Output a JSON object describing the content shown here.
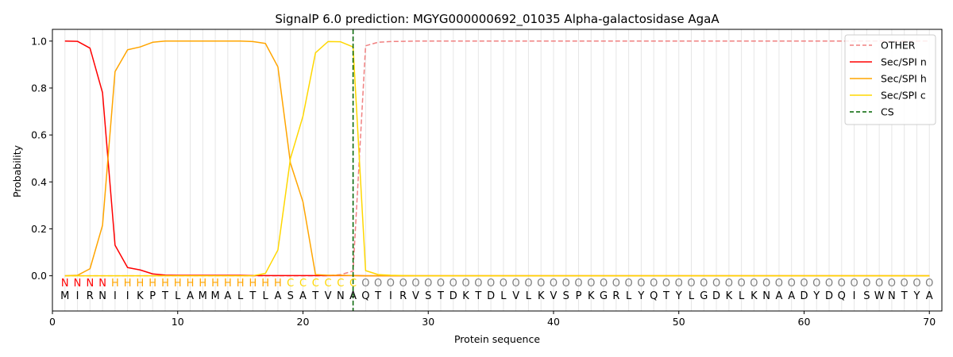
{
  "chart_data": {
    "type": "line",
    "title": "SignalP 6.0 prediction: MGYG000000692_01035 Alpha-galactosidase AgaA",
    "xlabel": "Protein sequence",
    "ylabel": "Probability",
    "xlim": [
      0,
      71
    ],
    "ylim": [
      -0.15,
      1.05
    ],
    "xticks": [
      0,
      10,
      20,
      30,
      40,
      50,
      60,
      70
    ],
    "yticks": [
      0.0,
      0.2,
      0.4,
      0.6,
      0.8,
      1.0
    ],
    "ytick_labels": [
      "0.0",
      "0.2",
      "0.4",
      "0.6",
      "0.8",
      "1.0"
    ],
    "grid": "vertical lines at each residue",
    "legend_position": "top-right",
    "sequence": [
      "M",
      "I",
      "R",
      "N",
      "I",
      "I",
      "K",
      "P",
      "T",
      "L",
      "A",
      "M",
      "M",
      "A",
      "L",
      "T",
      "L",
      "A",
      "S",
      "A",
      "T",
      "V",
      "N",
      "A",
      "Q",
      "T",
      "I",
      "R",
      "V",
      "S",
      "T",
      "D",
      "K",
      "T",
      "D",
      "L",
      "V",
      "L",
      "K",
      "V",
      "S",
      "P",
      "K",
      "G",
      "R",
      "L",
      "Y",
      "Q",
      "T",
      "Y",
      "L",
      "G",
      "D",
      "K",
      "L",
      "K",
      "N",
      "A",
      "A",
      "D",
      "Y",
      "D",
      "Q",
      "I",
      "S",
      "W",
      "N",
      "T",
      "Y",
      "A"
    ],
    "labels": [
      "N",
      "N",
      "N",
      "N",
      "H",
      "H",
      "H",
      "H",
      "H",
      "H",
      "H",
      "H",
      "H",
      "H",
      "H",
      "H",
      "H",
      "H",
      "C",
      "C",
      "C",
      "C",
      "C",
      "C",
      "O",
      "O",
      "O",
      "O",
      "O",
      "O",
      "O",
      "O",
      "O",
      "O",
      "O",
      "O",
      "O",
      "O",
      "O",
      "O",
      "O",
      "O",
      "O",
      "O",
      "O",
      "O",
      "O",
      "O",
      "O",
      "O",
      "O",
      "O",
      "O",
      "O",
      "O",
      "O",
      "O",
      "O",
      "O",
      "O",
      "O",
      "O",
      "O",
      "O",
      "O",
      "O",
      "O",
      "O",
      "O",
      "O"
    ],
    "label_colors": {
      "N": "#ff0000",
      "H": "#ffa500",
      "C": "#ffd700",
      "O": "#808080"
    },
    "cs_position": 24,
    "series": [
      {
        "name": "OTHER",
        "color": "#f08080",
        "dash": true,
        "values": [
          0,
          0,
          0,
          0,
          0,
          0,
          0,
          0,
          0,
          0,
          0,
          0,
          0,
          0,
          0,
          0,
          0,
          0,
          0,
          0,
          0,
          0,
          0.005,
          0.02,
          0.98,
          0.995,
          0.998,
          0.999,
          1,
          1,
          1,
          1,
          1,
          1,
          1,
          1,
          1,
          1,
          1,
          1,
          1,
          1,
          1,
          1,
          1,
          1,
          1,
          1,
          1,
          1,
          1,
          1,
          1,
          1,
          1,
          1,
          1,
          1,
          1,
          1,
          1,
          1,
          1,
          1,
          1,
          1,
          1,
          1,
          1,
          1
        ]
      },
      {
        "name": "Sec/SPI n",
        "color": "#ff0000",
        "dash": false,
        "values": [
          1.0,
          0.999,
          0.97,
          0.78,
          0.13,
          0.035,
          0.025,
          0.008,
          0.003,
          0.002,
          0.002,
          0.002,
          0.002,
          0.002,
          0.002,
          0.001,
          0.001,
          0.001,
          0.001,
          0.001,
          0.001,
          0.001,
          0.001,
          0.001,
          0,
          0,
          0,
          0,
          0,
          0,
          0,
          0,
          0,
          0,
          0,
          0,
          0,
          0,
          0,
          0,
          0,
          0,
          0,
          0,
          0,
          0,
          0,
          0,
          0,
          0,
          0,
          0,
          0,
          0,
          0,
          0,
          0,
          0,
          0,
          0,
          0,
          0,
          0,
          0,
          0,
          0,
          0,
          0,
          0,
          0
        ]
      },
      {
        "name": "Sec/SPI h",
        "color": "#ffa500",
        "dash": false,
        "values": [
          0,
          0.002,
          0.03,
          0.215,
          0.87,
          0.963,
          0.975,
          0.995,
          1.0,
          1.0,
          1.0,
          1.0,
          1.0,
          1.0,
          1.0,
          0.998,
          0.99,
          0.89,
          0.48,
          0.315,
          0.005,
          0.002,
          0.002,
          0.001,
          0,
          0,
          0,
          0,
          0,
          0,
          0,
          0,
          0,
          0,
          0,
          0,
          0,
          0,
          0,
          0,
          0,
          0,
          0,
          0,
          0,
          0,
          0,
          0,
          0,
          0,
          0,
          0,
          0,
          0,
          0,
          0,
          0,
          0,
          0,
          0,
          0,
          0,
          0,
          0,
          0,
          0,
          0,
          0,
          0,
          0
        ]
      },
      {
        "name": "Sec/SPI c",
        "color": "#ffd700",
        "dash": false,
        "values": [
          0,
          0,
          0,
          0,
          0,
          0,
          0,
          0,
          0,
          0,
          0,
          0,
          0,
          0,
          0,
          0,
          0.01,
          0.11,
          0.5,
          0.68,
          0.95,
          0.998,
          0.997,
          0.975,
          0.022,
          0.005,
          0.002,
          0.001,
          0,
          0,
          0,
          0,
          0,
          0,
          0,
          0,
          0,
          0,
          0,
          0,
          0,
          0,
          0,
          0,
          0,
          0,
          0,
          0,
          0,
          0,
          0,
          0,
          0,
          0,
          0,
          0,
          0,
          0,
          0,
          0,
          0,
          0,
          0,
          0,
          0,
          0,
          0,
          0,
          0,
          0
        ]
      }
    ],
    "legend": [
      {
        "name": "OTHER",
        "color": "#f08080",
        "dash": true
      },
      {
        "name": "Sec/SPI n",
        "color": "#ff0000",
        "dash": false
      },
      {
        "name": "Sec/SPI h",
        "color": "#ffa500",
        "dash": false
      },
      {
        "name": "Sec/SPI c",
        "color": "#ffd700",
        "dash": false
      },
      {
        "name": "CS",
        "color": "#006400",
        "dash": true
      }
    ]
  }
}
